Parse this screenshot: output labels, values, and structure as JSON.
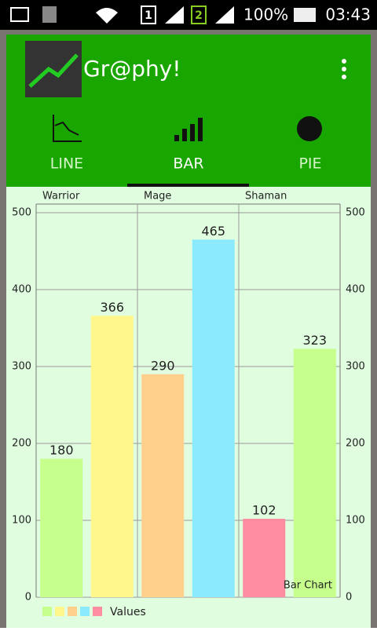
{
  "status_bar": {
    "sim1": "1",
    "sim2": "2",
    "battery": "100%",
    "time": "03:43"
  },
  "app_bar": {
    "title": "Gr@phy!"
  },
  "tabs": [
    "LINE",
    "BAR",
    "PIE"
  ],
  "chart_data": {
    "type": "bar",
    "categories": [
      "Warrior",
      null,
      "Mage",
      null,
      "Shaman",
      null
    ],
    "series": [
      {
        "name": "Values",
        "colors": [
          "#c6ff8c",
          "#fff68c",
          "#ffd08c",
          "#8ceaff",
          "#ff8ca0",
          "#c6ff8c"
        ],
        "values": [
          180,
          366,
          290,
          465,
          102,
          323
        ]
      }
    ],
    "legend_colors": [
      "#c6ff8c",
      "#fff68c",
      "#ffd08c",
      "#8ceaff",
      "#ff8ca0"
    ],
    "description": "Bar Chart",
    "ylim": [
      0,
      500
    ],
    "yticks": [
      0,
      100,
      200,
      300,
      400,
      500
    ],
    "y2lim": [
      0,
      500
    ],
    "y2ticks": [
      0,
      100,
      200,
      300,
      400,
      500
    ],
    "grid": true
  }
}
